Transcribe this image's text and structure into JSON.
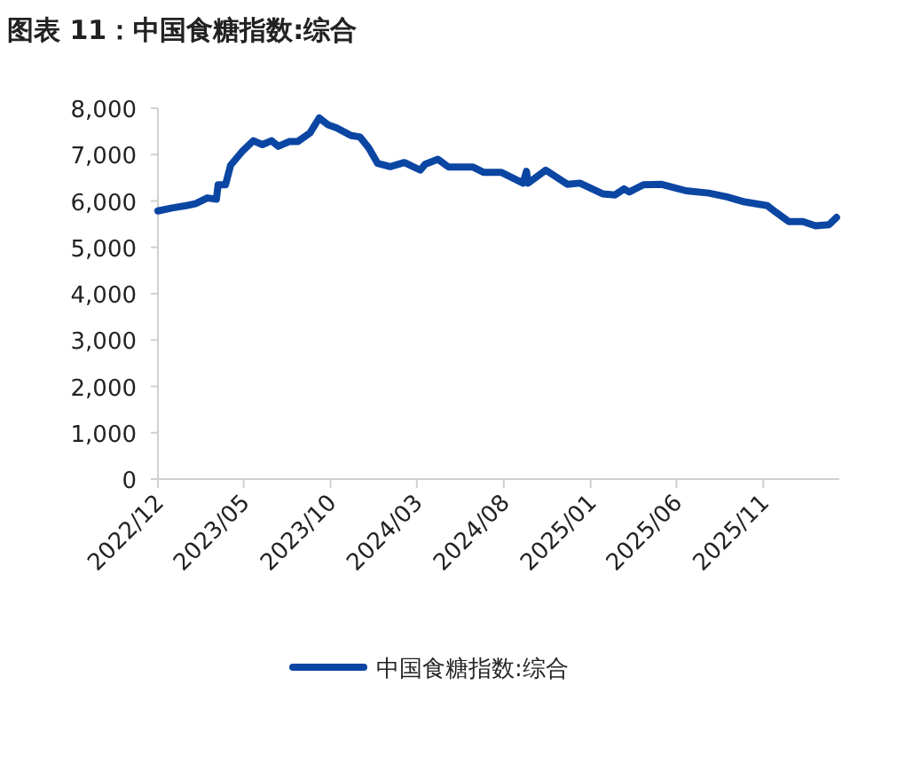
{
  "chart_data": {
    "type": "line",
    "title": "图表 11：中国食糖指数:综合",
    "x": [
      "2022-12-01",
      "2022-12-26",
      "2023-01-20",
      "2023-02-05",
      "2023-02-26",
      "2023-03-14",
      "2023-03-17",
      "2023-03-30",
      "2023-04-08",
      "2023-04-30",
      "2023-05-18",
      "2023-06-03",
      "2023-06-19",
      "2023-07-01",
      "2023-07-20",
      "2023-08-04",
      "2023-08-26",
      "2023-09-11",
      "2023-09-27",
      "2023-10-12",
      "2023-11-06",
      "2023-11-22",
      "2023-12-07",
      "2023-12-23",
      "2024-01-14",
      "2024-02-08",
      "2024-03-07",
      "2024-03-16",
      "2024-04-07",
      "2024-04-26",
      "2024-06-08",
      "2024-06-27",
      "2024-07-28",
      "2024-09-04",
      "2024-09-10",
      "2024-09-13",
      "2024-10-14",
      "2024-11-21",
      "2024-12-13",
      "2025-01-22",
      "2025-02-13",
      "2025-03-01",
      "2025-03-10",
      "2025-04-04",
      "2025-05-05",
      "2025-06-18",
      "2025-07-28",
      "2025-08-29",
      "2025-09-29",
      "2025-11-08",
      "2025-11-24",
      "2025-12-16",
      "2026-01-10",
      "2026-02-01",
      "2026-02-25",
      "2026-03-10"
    ],
    "series": [
      {
        "name": "中国食糖指数:综合",
        "color": "#0b46a3",
        "values": [
          5785,
          5850,
          5900,
          5940,
          6065,
          6040,
          6350,
          6350,
          6770,
          7090,
          7300,
          7215,
          7300,
          7180,
          7280,
          7280,
          7470,
          7790,
          7640,
          7575,
          7410,
          7380,
          7150,
          6810,
          6740,
          6830,
          6665,
          6795,
          6900,
          6730,
          6730,
          6615,
          6615,
          6385,
          6640,
          6385,
          6665,
          6360,
          6385,
          6155,
          6130,
          6260,
          6195,
          6350,
          6360,
          6220,
          6170,
          6090,
          5980,
          5900,
          5750,
          5555,
          5555,
          5465,
          5490,
          5645
        ]
      }
    ],
    "xlim": [
      "2022-12-01",
      "2026-03-15"
    ],
    "xticks": [
      {
        "value": "2022-12",
        "label": "2022/12"
      },
      {
        "value": "2023-05",
        "label": "2023/05"
      },
      {
        "value": "2023-10",
        "label": "2023/10"
      },
      {
        "value": "2024-03",
        "label": "2024/03"
      },
      {
        "value": "2024-08",
        "label": "2024/08"
      },
      {
        "value": "2025-01",
        "label": "2025/01"
      },
      {
        "value": "2025-06",
        "label": "2025/06"
      },
      {
        "value": "2025-11",
        "label": "2025/11"
      }
    ],
    "ylim": [
      0,
      8000
    ],
    "yticks": [
      0,
      {
        "value": 1000,
        "label": "1,000"
      },
      {
        "value": 2000,
        "label": "2,000"
      },
      {
        "value": 3000,
        "label": "3,000"
      },
      {
        "value": 4000,
        "label": "4,000"
      },
      {
        "value": 5000,
        "label": "5,000"
      },
      {
        "value": 6000,
        "label": "6,000"
      },
      {
        "value": 7000,
        "label": "7,000"
      },
      {
        "value": 8000,
        "label": "8,000"
      }
    ],
    "legend": "bottom",
    "grid": false,
    "marker": "none",
    "line_style": "solid"
  }
}
